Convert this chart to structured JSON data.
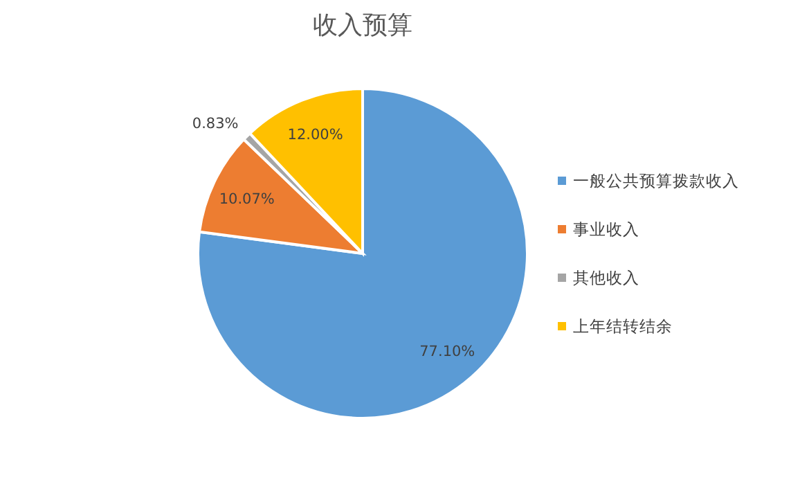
{
  "chart_data": {
    "type": "pie",
    "title": "收入预算",
    "categories": [
      "一般公共预算拨款收入",
      "事业收入",
      "其他收入",
      "上年结转结余"
    ],
    "values": [
      77.1,
      10.07,
      0.83,
      12.0
    ],
    "value_labels": [
      "77.10%",
      "10.07%",
      "0.83%",
      "12.00%"
    ],
    "colors": [
      "#5b9bd5",
      "#ed7d31",
      "#a5a5a5",
      "#ffc000"
    ],
    "legend": "right"
  }
}
